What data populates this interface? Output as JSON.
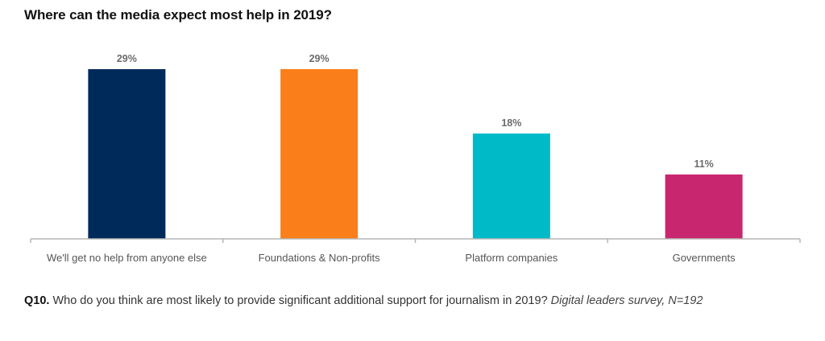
{
  "chart_data": {
    "type": "bar",
    "title": "Where can the media expect most help in 2019?",
    "categories": [
      "We'll get no help from anyone else",
      "Foundations & Non-profits",
      "Platform companies",
      "Governments"
    ],
    "values": [
      29,
      29,
      18,
      11
    ],
    "value_labels": [
      "29%",
      "29%",
      "18%",
      "11%"
    ],
    "colors": [
      "#002a5a",
      "#fa7e19",
      "#00bac8",
      "#c8266e"
    ],
    "unit": "%",
    "xlabel": "",
    "ylabel": "",
    "ylim": [
      0,
      29
    ],
    "grid": false,
    "legend": "none"
  },
  "caption": {
    "question_id": "Q10.",
    "question": " Who do you think are most likely to provide significant additional support for journalism in 2019? ",
    "source": "Digital leaders survey, N=192"
  }
}
